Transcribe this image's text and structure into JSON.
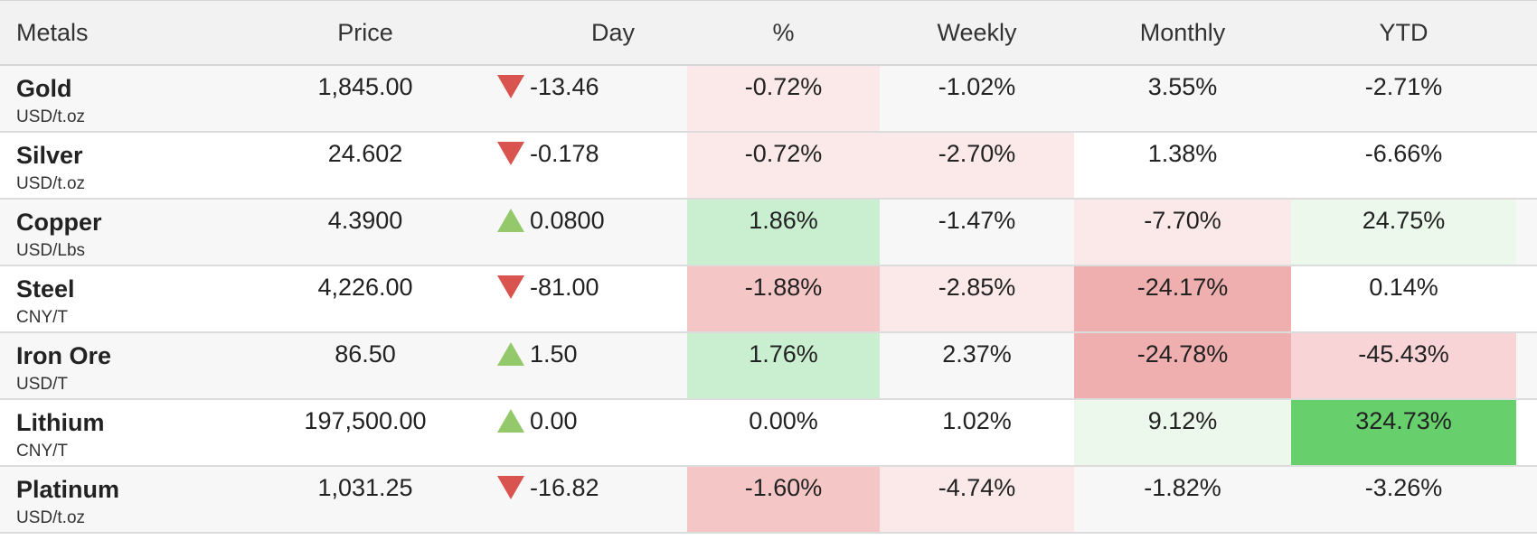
{
  "headers": {
    "metals": "Metals",
    "price": "Price",
    "day": "Day",
    "pct": "%",
    "weekly": "Weekly",
    "monthly": "Monthly",
    "ytd": "YTD"
  },
  "rows": [
    {
      "name": "Gold",
      "unit": "USD/t.oz",
      "price": "1,845.00",
      "direction": "down",
      "day": "-13.46",
      "pct": "-0.72%",
      "weekly": "-1.02%",
      "monthly": "3.55%",
      "ytd": "-2.71%"
    },
    {
      "name": "Silver",
      "unit": "USD/t.oz",
      "price": "24.602",
      "direction": "down",
      "day": "-0.178",
      "pct": "-0.72%",
      "weekly": "-2.70%",
      "monthly": "1.38%",
      "ytd": "-6.66%"
    },
    {
      "name": "Copper",
      "unit": "USD/Lbs",
      "price": "4.3900",
      "direction": "up",
      "day": "0.0800",
      "pct": "1.86%",
      "weekly": "-1.47%",
      "monthly": "-7.70%",
      "ytd": "24.75%"
    },
    {
      "name": "Steel",
      "unit": "CNY/T",
      "price": "4,226.00",
      "direction": "down",
      "day": "-81.00",
      "pct": "-1.88%",
      "weekly": "-2.85%",
      "monthly": "-24.17%",
      "ytd": "0.14%"
    },
    {
      "name": "Iron Ore",
      "unit": "USD/T",
      "price": "86.50",
      "direction": "up",
      "day": "1.50",
      "pct": "1.76%",
      "weekly": "2.37%",
      "monthly": "-24.78%",
      "ytd": "-45.43%"
    },
    {
      "name": "Lithium",
      "unit": "CNY/T",
      "price": "197,500.00",
      "direction": "up",
      "day": "0.00",
      "pct": "0.00%",
      "weekly": "1.02%",
      "monthly": "9.12%",
      "ytd": "324.73%"
    },
    {
      "name": "Platinum",
      "unit": "USD/t.oz",
      "price": "1,031.25",
      "direction": "down",
      "day": "-16.82",
      "pct": "-1.60%",
      "weekly": "-4.74%",
      "monthly": "-1.82%",
      "ytd": "-3.26%"
    }
  ],
  "colors": {
    "header_bg": "#f2f2f2",
    "row_alt_bg": "#f7f7f7",
    "arrow_down": "#d9534f",
    "arrow_up": "#93c86b",
    "red_light": "#fbe9e9",
    "red_mid": "#f5c6c6",
    "red_strong": "#f0afaf",
    "green_light": "#ecf8ec",
    "green_mid": "#c9efd0",
    "green_strong": "#67d06d"
  },
  "heat": {
    "rows": [
      {
        "pct": "#fbe9e9",
        "weekly": "#ffffff",
        "monthly": "#ffffff",
        "ytd": "#ffffff"
      },
      {
        "pct": "#fbe9e9",
        "weekly": "#fbe9e9",
        "monthly": "#ffffff",
        "ytd": "#ffffff"
      },
      {
        "pct": "#c9efd0",
        "weekly": "#ffffff",
        "monthly": "#fbe9e9",
        "ytd": "#ecf8ec"
      },
      {
        "pct": "#f5c6c6",
        "weekly": "#fbe9e9",
        "monthly": "#f0afaf",
        "ytd": "#ffffff"
      },
      {
        "pct": "#c9efd0",
        "weekly": "#ffffff",
        "monthly": "#f0afaf",
        "ytd": "#f9d4d7"
      },
      {
        "pct": "#ffffff",
        "weekly": "#ffffff",
        "monthly": "#ecf8ec",
        "ytd": "#67d06d"
      },
      {
        "pct": "#f5c6c6",
        "weekly": "#fbe9e9",
        "monthly": "#ffffff",
        "ytd": "#ffffff"
      }
    ]
  }
}
